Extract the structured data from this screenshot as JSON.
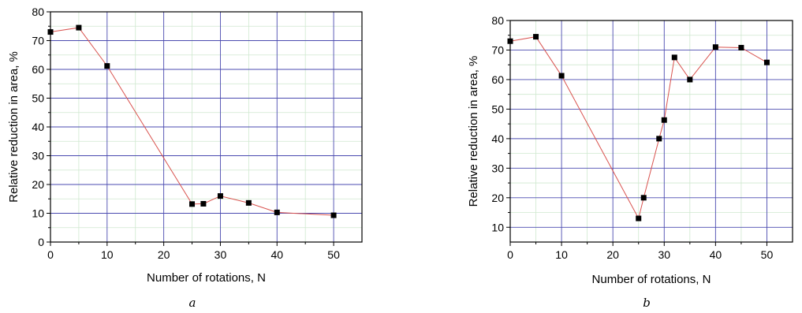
{
  "chart_data": [
    {
      "type": "line",
      "panel_label": "a",
      "xlabel": "Number of rotations, N",
      "ylabel": "Relative reduction in area, %",
      "xlim": [
        0,
        55
      ],
      "ylim": [
        0,
        80
      ],
      "xticks": [
        "0",
        "10",
        "20",
        "30",
        "40",
        "50"
      ],
      "yticks": [
        "0",
        "10",
        "20",
        "30",
        "40",
        "50",
        "60",
        "70",
        "80"
      ],
      "grid": true,
      "series": [
        {
          "color": "#d9534f",
          "marker_color": "#000000",
          "x": [
            0,
            5,
            10,
            25,
            27,
            30,
            35,
            40,
            50
          ],
          "y": [
            73,
            74.5,
            61.2,
            13.2,
            13.3,
            16,
            13.6,
            10.3,
            9.3
          ]
        }
      ]
    },
    {
      "type": "line",
      "panel_label": "b",
      "xlabel": "Number of  rotations, N",
      "ylabel": "Relative reduction in area, %",
      "xlim": [
        0,
        55
      ],
      "ylim": [
        5,
        80
      ],
      "xticks": [
        "0",
        "10",
        "20",
        "30",
        "40",
        "50"
      ],
      "yticks": [
        "10",
        "20",
        "30",
        "40",
        "50",
        "60",
        "70",
        "80"
      ],
      "grid": true,
      "series": [
        {
          "color": "#d9534f",
          "marker_color": "#000000",
          "x": [
            0,
            5,
            10,
            25,
            26,
            29,
            30,
            32,
            35,
            40,
            45,
            50
          ],
          "y": [
            73,
            74.5,
            61.3,
            13,
            20,
            40,
            46.3,
            67.5,
            60,
            71,
            70.8,
            65.8
          ]
        }
      ]
    }
  ]
}
